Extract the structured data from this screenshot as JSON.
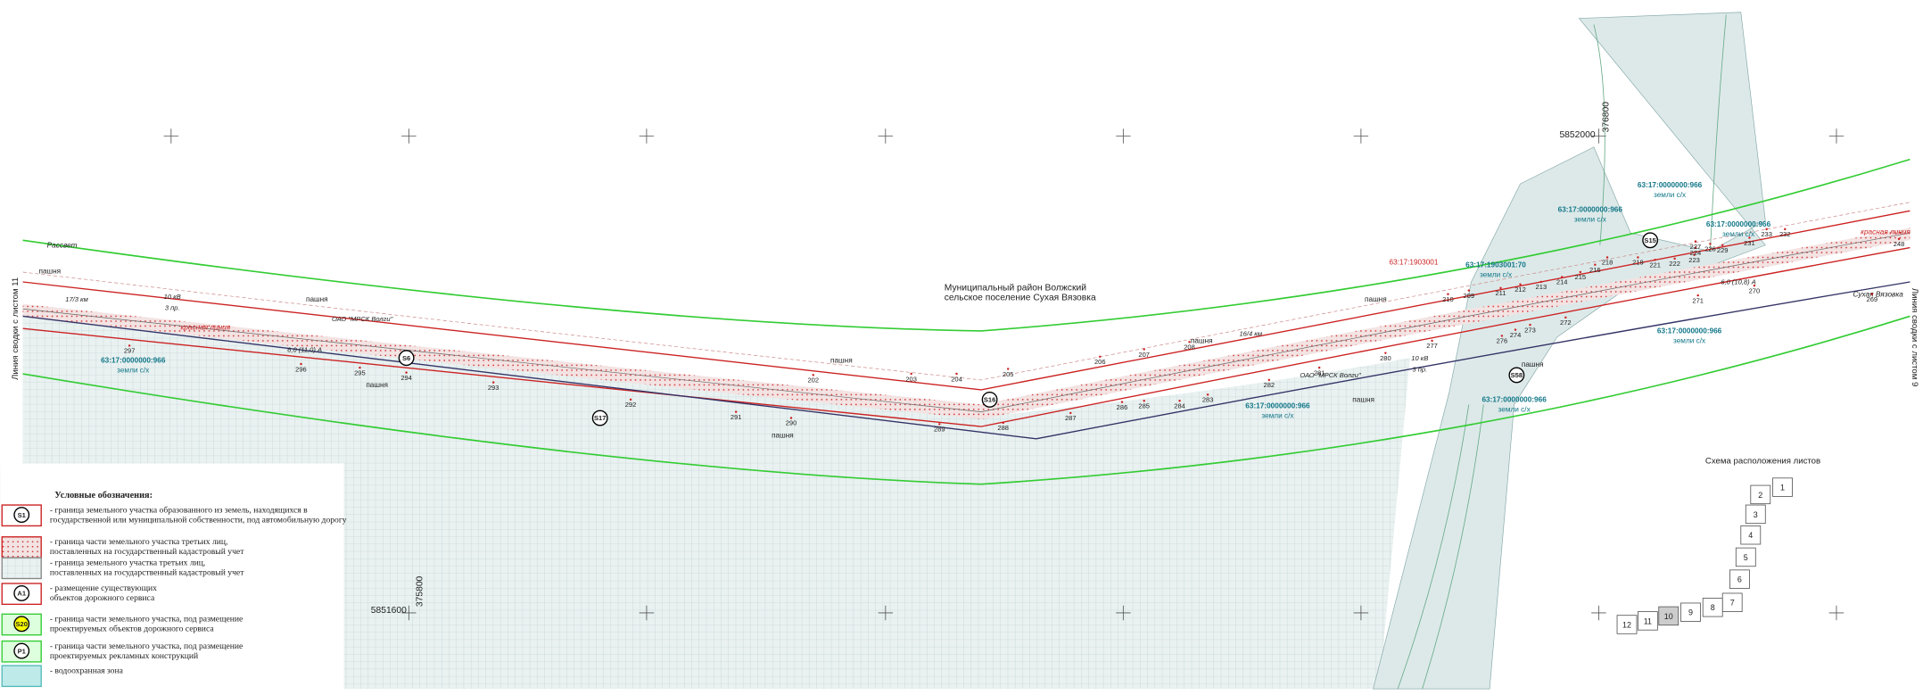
{
  "map": {
    "district": "Муниципальный район Волжский",
    "settlement": "сельское поселение Сухая Вязовка",
    "join_left": "Линия сводки с листом 11",
    "join_right": "Линия сводки с листом 9",
    "coordinates": [
      "5852000",
      "376800",
      "5851600",
      "375800"
    ],
    "parcels": [
      {
        "number": "63:17:0000000:966",
        "land": "земли с/х"
      },
      {
        "number": "63:17:0000000:966",
        "land": "земли с/х"
      },
      {
        "number": "63:17:0000000:966",
        "land": "земли с/х"
      },
      {
        "number": "63:17:0000000:966",
        "land": "земли с/х"
      },
      {
        "number": "63:17:0000000:966",
        "land": "земли с/х"
      },
      {
        "number": "63:17:0000000:966",
        "land": "земли с/х"
      },
      {
        "number": "63:17:0000000:966",
        "land": "земли с/х"
      },
      {
        "number": "63:17:1903001:70",
        "land": "земли с/х"
      }
    ],
    "quarter": "63:17:1903001",
    "labels": [
      "пашня",
      "пашня",
      "пашня",
      "пашня",
      "пашня",
      "пашня",
      "пашня",
      "пашня",
      "пашня",
      "Рассвет",
      "Сухая Вязовка"
    ],
    "lines": [
      "10 кВ",
      "3 пр.",
      "ОАО \"МРСК Волги\"",
      "красная линия",
      "17/3 км",
      "16/4 км",
      "10 кВ",
      "3 пр.",
      "ОАО \"МРСК Волги\"",
      "красная линия",
      "6,0 (11,0) А",
      "6,0 (10,8) А"
    ],
    "zones": [
      "S6",
      "S17",
      "S16",
      "S15",
      "S58"
    ],
    "points": [
      "297",
      "296",
      "295",
      "294",
      "293",
      "292",
      "291",
      "290",
      "289",
      "288",
      "287",
      "286",
      "285",
      "284",
      "283",
      "282",
      "281",
      "280",
      "202",
      "203",
      "204",
      "205",
      "206",
      "207",
      "208",
      "210",
      "209",
      "211",
      "212",
      "213",
      "214",
      "215",
      "216",
      "218",
      "219",
      "221",
      "222",
      "223",
      "224",
      "226",
      "227",
      "229",
      "231",
      "232",
      "233",
      "248",
      "269",
      "270",
      "271",
      "272",
      "273",
      "274",
      "276",
      "277"
    ]
  },
  "legend": {
    "title": "Условные обозначения:",
    "items": [
      {
        "symbol": "S1",
        "text": [
          "- граница земельного участка образованного из земель, находящихся в",
          "государственной или муниципальной собственности, под автомобильную дорогу"
        ]
      },
      {
        "symbol": null,
        "text": [
          "- граница части земельного участка третьих лиц,",
          "поставленных на государственный кадастровый учет"
        ]
      },
      {
        "symbol": null,
        "text": [
          "- граница земельного участка третьих лиц,",
          "поставленных на государственный кадастровый учет"
        ]
      },
      {
        "symbol": "A1",
        "text": [
          "- размещение существующих",
          "объектов дорожного сервиса"
        ]
      },
      {
        "symbol": "S20",
        "text": [
          "- граница части земельного участка, под размещение",
          "проектируемых объектов дорожного сервиса"
        ]
      },
      {
        "symbol": "P1",
        "text": [
          "- граница части земельного участка, под размещение",
          "проектируемых рекламных конструкций"
        ]
      },
      {
        "symbol": null,
        "text": [
          "- водоохранная зона"
        ]
      }
    ]
  },
  "sheet_scheme": {
    "title": "Схема расположения листов",
    "sheets": [
      "1",
      "2",
      "3",
      "4",
      "5",
      "6",
      "7",
      "8",
      "9",
      "10",
      "11",
      "12"
    ],
    "current": "10"
  }
}
